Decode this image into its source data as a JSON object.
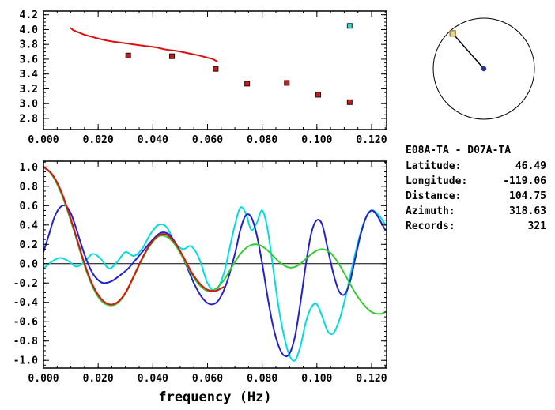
{
  "window": {
    "background": "#ffffff",
    "axis_color": "#000000"
  },
  "station": {
    "pair": "E08A-TA - D07A-TA",
    "rows": [
      {
        "label": "Latitude:",
        "value": "46.49"
      },
      {
        "label": "Longitude:",
        "value": "-119.06"
      },
      {
        "label": "Distance:",
        "value": "104.75"
      },
      {
        "label": "Azimuth:",
        "value": "318.63"
      },
      {
        "label": "Records:",
        "value": "321"
      }
    ]
  },
  "azimuth_panel": {
    "azimuth_deg": 318.63,
    "circle_color": "#000000",
    "needle_color": "#000000",
    "center_dot_color": "#223399",
    "end_marker_edge": "#8a7428",
    "end_marker_fill": "#e6d696"
  },
  "chart_data": [
    {
      "type": "line",
      "name": "dispersion-panel",
      "xlim": [
        0,
        0.1255
      ],
      "ylim": [
        2.65,
        4.25
      ],
      "xticks": [
        0,
        0.02,
        0.04,
        0.06,
        0.08,
        0.1,
        0.12
      ],
      "xtick_labels": [
        "0.000",
        "0.020",
        "0.040",
        "0.060",
        "0.080",
        "0.100",
        "0.120"
      ],
      "yticks": [
        2.8,
        3.0,
        3.2,
        3.4,
        3.6,
        3.8,
        4.0,
        4.2
      ],
      "ytick_labels": [
        "2.8",
        "3.0",
        "3.2",
        "3.4",
        "3.6",
        "3.8",
        "4.0",
        "4.2"
      ],
      "x_minor_step": 0.005,
      "y_minor_step": 0.05,
      "xlabel": "",
      "zero_line": false,
      "series": [
        {
          "name": "predicted-dispersion-curve",
          "type": "line",
          "color": "#dd1111",
          "width": 2,
          "points": [
            [
              0.01,
              4.02
            ],
            [
              0.011,
              3.99
            ],
            [
              0.013,
              3.96
            ],
            [
              0.015,
              3.93
            ],
            [
              0.018,
              3.9
            ],
            [
              0.021,
              3.87
            ],
            [
              0.025,
              3.84
            ],
            [
              0.029,
              3.82
            ],
            [
              0.033,
              3.8
            ],
            [
              0.037,
              3.78
            ],
            [
              0.041,
              3.76
            ],
            [
              0.045,
              3.73
            ],
            [
              0.049,
              3.71
            ],
            [
              0.053,
              3.68
            ],
            [
              0.057,
              3.65
            ],
            [
              0.06,
              3.62
            ],
            [
              0.062,
              3.6
            ],
            [
              0.0635,
              3.57
            ]
          ]
        },
        {
          "name": "picked-group-velocities",
          "type": "squares",
          "color": "#bb2222",
          "edge": "#330000",
          "size": 6,
          "points": [
            [
              0.031,
              3.65
            ],
            [
              0.047,
              3.64
            ],
            [
              0.063,
              3.47
            ],
            [
              0.0745,
              3.27
            ],
            [
              0.089,
              3.28
            ],
            [
              0.1005,
              3.12
            ],
            [
              0.112,
              3.02
            ]
          ]
        },
        {
          "name": "active-pick",
          "type": "squares",
          "color": "#44cccc",
          "edge": "#003333",
          "size": 6,
          "points": [
            [
              0.112,
              4.05
            ]
          ]
        }
      ]
    },
    {
      "type": "line",
      "name": "waveform-panel",
      "xlim": [
        0,
        0.1255
      ],
      "ylim": [
        -1.08,
        1.06
      ],
      "xticks": [
        0,
        0.02,
        0.04,
        0.06,
        0.08,
        0.1,
        0.12
      ],
      "xtick_labels": [
        "0.000",
        "0.020",
        "0.040",
        "0.060",
        "0.080",
        "0.100",
        "0.120"
      ],
      "yticks": [
        -1.0,
        -0.8,
        -0.6,
        -0.4,
        -0.2,
        0.0,
        0.2,
        0.4,
        0.6,
        0.8,
        1.0
      ],
      "ytick_labels": [
        "-1.0",
        "-0.8",
        "-0.6",
        "-0.4",
        "-0.2",
        "0.0",
        "0.2",
        "0.4",
        "0.6",
        "0.8",
        "1.0"
      ],
      "x_minor_step": 0.005,
      "y_minor_step": 0.05,
      "xlabel": "frequency (Hz)",
      "zero_line": true,
      "series": [
        {
          "name": "cyan-waveform",
          "type": "line",
          "color": "#00dddd",
          "width": 2,
          "points": [
            [
              0.0,
              -0.05
            ],
            [
              0.003,
              0.02
            ],
            [
              0.006,
              0.06
            ],
            [
              0.009,
              0.03
            ],
            [
              0.012,
              -0.03
            ],
            [
              0.015,
              0.02
            ],
            [
              0.018,
              0.1
            ],
            [
              0.021,
              0.05
            ],
            [
              0.024,
              -0.05
            ],
            [
              0.027,
              0.02
            ],
            [
              0.03,
              0.12
            ],
            [
              0.033,
              0.08
            ],
            [
              0.036,
              0.15
            ],
            [
              0.039,
              0.3
            ],
            [
              0.042,
              0.4
            ],
            [
              0.045,
              0.38
            ],
            [
              0.048,
              0.22
            ],
            [
              0.051,
              0.15
            ],
            [
              0.054,
              0.18
            ],
            [
              0.057,
              0.05
            ],
            [
              0.06,
              -0.2
            ],
            [
              0.063,
              -0.28
            ],
            [
              0.066,
              -0.1
            ],
            [
              0.068,
              0.15
            ],
            [
              0.07,
              0.4
            ],
            [
              0.072,
              0.58
            ],
            [
              0.074,
              0.52
            ],
            [
              0.076,
              0.35
            ],
            [
              0.078,
              0.42
            ],
            [
              0.08,
              0.55
            ],
            [
              0.082,
              0.35
            ],
            [
              0.084,
              -0.05
            ],
            [
              0.086,
              -0.45
            ],
            [
              0.088,
              -0.75
            ],
            [
              0.09,
              -0.95
            ],
            [
              0.092,
              -1.0
            ],
            [
              0.094,
              -0.85
            ],
            [
              0.096,
              -0.6
            ],
            [
              0.098,
              -0.45
            ],
            [
              0.1,
              -0.42
            ],
            [
              0.102,
              -0.55
            ],
            [
              0.104,
              -0.7
            ],
            [
              0.106,
              -0.72
            ],
            [
              0.108,
              -0.6
            ],
            [
              0.11,
              -0.4
            ],
            [
              0.112,
              -0.15
            ],
            [
              0.114,
              0.1
            ],
            [
              0.116,
              0.32
            ],
            [
              0.118,
              0.48
            ],
            [
              0.12,
              0.55
            ],
            [
              0.122,
              0.52
            ],
            [
              0.124,
              0.45
            ],
            [
              0.125,
              0.4
            ]
          ]
        },
        {
          "name": "blue-waveform",
          "type": "line",
          "color": "#2222cc",
          "width": 2,
          "points": [
            [
              0.0,
              0.12
            ],
            [
              0.002,
              0.3
            ],
            [
              0.004,
              0.48
            ],
            [
              0.006,
              0.58
            ],
            [
              0.008,
              0.6
            ],
            [
              0.01,
              0.52
            ],
            [
              0.012,
              0.36
            ],
            [
              0.014,
              0.18
            ],
            [
              0.016,
              0.02
            ],
            [
              0.018,
              -0.1
            ],
            [
              0.02,
              -0.17
            ],
            [
              0.022,
              -0.2
            ],
            [
              0.025,
              -0.18
            ],
            [
              0.028,
              -0.12
            ],
            [
              0.031,
              -0.05
            ],
            [
              0.034,
              0.05
            ],
            [
              0.037,
              0.15
            ],
            [
              0.04,
              0.25
            ],
            [
              0.043,
              0.32
            ],
            [
              0.046,
              0.3
            ],
            [
              0.049,
              0.18
            ],
            [
              0.052,
              0.0
            ],
            [
              0.055,
              -0.2
            ],
            [
              0.058,
              -0.35
            ],
            [
              0.061,
              -0.42
            ],
            [
              0.064,
              -0.38
            ],
            [
              0.067,
              -0.2
            ],
            [
              0.07,
              0.1
            ],
            [
              0.072,
              0.35
            ],
            [
              0.074,
              0.5
            ],
            [
              0.076,
              0.48
            ],
            [
              0.078,
              0.3
            ],
            [
              0.08,
              0.0
            ],
            [
              0.082,
              -0.35
            ],
            [
              0.084,
              -0.65
            ],
            [
              0.086,
              -0.85
            ],
            [
              0.088,
              -0.95
            ],
            [
              0.09,
              -0.93
            ],
            [
              0.092,
              -0.75
            ],
            [
              0.094,
              -0.4
            ],
            [
              0.096,
              0.0
            ],
            [
              0.098,
              0.32
            ],
            [
              0.1,
              0.45
            ],
            [
              0.102,
              0.4
            ],
            [
              0.104,
              0.15
            ],
            [
              0.106,
              -0.1
            ],
            [
              0.108,
              -0.28
            ],
            [
              0.11,
              -0.32
            ],
            [
              0.112,
              -0.2
            ],
            [
              0.114,
              0.05
            ],
            [
              0.116,
              0.3
            ],
            [
              0.118,
              0.48
            ],
            [
              0.12,
              0.55
            ],
            [
              0.122,
              0.5
            ],
            [
              0.124,
              0.4
            ],
            [
              0.125,
              0.35
            ]
          ]
        },
        {
          "name": "green-waveform",
          "type": "line",
          "color": "#33cc33",
          "width": 2,
          "points": [
            [
              0.0,
              1.0
            ],
            [
              0.003,
              0.92
            ],
            [
              0.006,
              0.76
            ],
            [
              0.009,
              0.53
            ],
            [
              0.012,
              0.26
            ],
            [
              0.015,
              -0.02
            ],
            [
              0.018,
              -0.24
            ],
            [
              0.021,
              -0.38
            ],
            [
              0.024,
              -0.43
            ],
            [
              0.027,
              -0.41
            ],
            [
              0.03,
              -0.31
            ],
            [
              0.033,
              -0.14
            ],
            [
              0.036,
              0.04
            ],
            [
              0.039,
              0.19
            ],
            [
              0.042,
              0.28
            ],
            [
              0.045,
              0.28
            ],
            [
              0.048,
              0.2
            ],
            [
              0.051,
              0.06
            ],
            [
              0.054,
              -0.1
            ],
            [
              0.057,
              -0.22
            ],
            [
              0.06,
              -0.28
            ],
            [
              0.063,
              -0.26
            ],
            [
              0.066,
              -0.17
            ],
            [
              0.069,
              -0.03
            ],
            [
              0.072,
              0.1
            ],
            [
              0.075,
              0.18
            ],
            [
              0.078,
              0.2
            ],
            [
              0.081,
              0.16
            ],
            [
              0.084,
              0.08
            ],
            [
              0.087,
              0.0
            ],
            [
              0.09,
              -0.04
            ],
            [
              0.093,
              -0.02
            ],
            [
              0.096,
              0.05
            ],
            [
              0.099,
              0.12
            ],
            [
              0.102,
              0.15
            ],
            [
              0.105,
              0.11
            ],
            [
              0.108,
              0.0
            ],
            [
              0.111,
              -0.15
            ],
            [
              0.114,
              -0.3
            ],
            [
              0.117,
              -0.42
            ],
            [
              0.12,
              -0.5
            ],
            [
              0.123,
              -0.52
            ],
            [
              0.125,
              -0.5
            ]
          ]
        },
        {
          "name": "red-waveform",
          "type": "line",
          "color": "#dd1111",
          "width": 2,
          "points": [
            [
              0.0,
              1.0
            ],
            [
              0.003,
              0.93
            ],
            [
              0.006,
              0.78
            ],
            [
              0.009,
              0.55
            ],
            [
              0.012,
              0.28
            ],
            [
              0.015,
              0.0
            ],
            [
              0.018,
              -0.22
            ],
            [
              0.021,
              -0.36
            ],
            [
              0.024,
              -0.42
            ],
            [
              0.027,
              -0.4
            ],
            [
              0.03,
              -0.3
            ],
            [
              0.033,
              -0.13
            ],
            [
              0.036,
              0.05
            ],
            [
              0.039,
              0.2
            ],
            [
              0.042,
              0.29
            ],
            [
              0.045,
              0.3
            ],
            [
              0.048,
              0.22
            ],
            [
              0.051,
              0.08
            ],
            [
              0.054,
              -0.08
            ],
            [
              0.057,
              -0.2
            ],
            [
              0.06,
              -0.27
            ],
            [
              0.063,
              -0.28
            ],
            [
              0.066,
              -0.24
            ]
          ]
        }
      ]
    }
  ]
}
